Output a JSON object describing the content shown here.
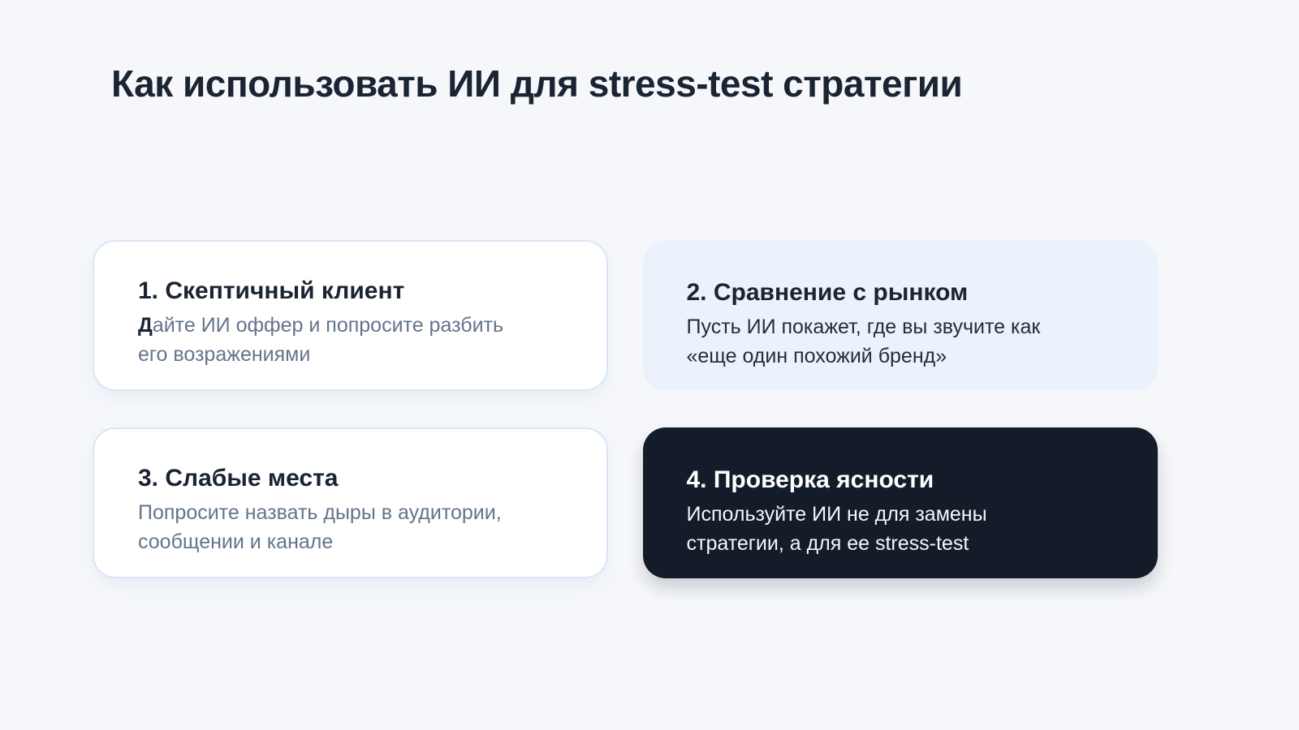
{
  "title": "Как использовать ИИ для stress-test стратегии",
  "cards": [
    {
      "title": "1. Скептичный клиент",
      "desc_lead": "Д",
      "desc_rest": "айте ИИ оффер и попросите разбить\nего возражениями"
    },
    {
      "title": "2. Сравнение с рынком",
      "desc_lead": "",
      "desc_rest": "Пусть ИИ покажет, где вы звучите как\n«еще один похожий бренд»"
    },
    {
      "title": "3. Слабые места",
      "desc_lead": "",
      "desc_rest": "Попросите назвать дыры в аудитории,\nсообщении и канале"
    },
    {
      "title": "4. Проверка ясности",
      "desc_lead": "",
      "desc_rest": "Используйте ИИ не для замены\nстратегии, а для ее stress-test"
    }
  ],
  "theme": {
    "page_bg": "#f5f7fa",
    "text_dark": "#1b2433",
    "text_gray": "#64748b",
    "text_on_dark": "#f4f7fa",
    "card_white_bg": "#ffffff",
    "card_white_border": "#d9e6f7",
    "card_blue_bg": "#ecf2fb",
    "card_dark_bg": "#141c2a"
  }
}
